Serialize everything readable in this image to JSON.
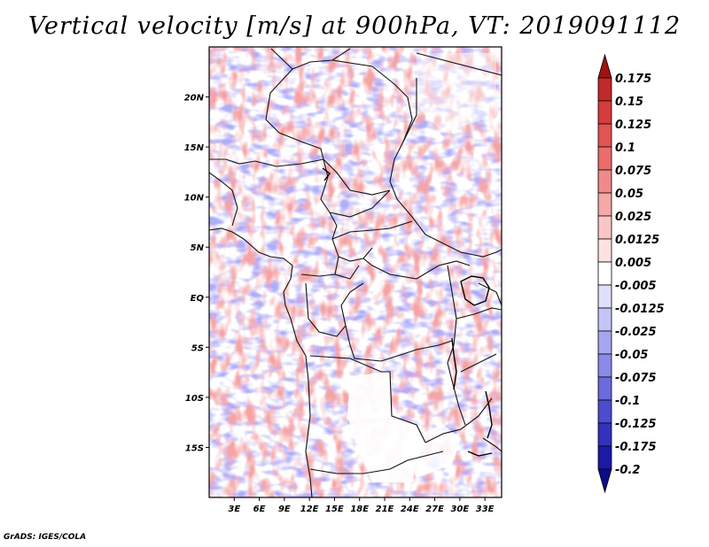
{
  "title": "Vertical velocity [m/s] at 900hPa, VT: 2019091112",
  "credit": "GrADS: IGES/COLA",
  "map": {
    "lat_labels": [
      "20N",
      "15N",
      "10N",
      "5N",
      "EQ",
      "5S",
      "10S",
      "15S"
    ],
    "lat_values": [
      20,
      15,
      10,
      5,
      0,
      -5,
      -10,
      -15
    ],
    "lon_labels": [
      "3E",
      "6E",
      "9E",
      "12E",
      "15E",
      "18E",
      "21E",
      "24E",
      "27E",
      "30E",
      "33E"
    ],
    "lon_values": [
      3,
      6,
      9,
      12,
      15,
      18,
      21,
      24,
      27,
      30,
      33
    ],
    "lat_range": [
      -20,
      25
    ],
    "lon_range": [
      0,
      35
    ]
  },
  "colorbar": {
    "labels": [
      "0.175",
      "0.15",
      "0.125",
      "0.1",
      "0.075",
      "0.05",
      "0.025",
      "0.0125",
      "0.005",
      "-0.005",
      "-0.0125",
      "-0.025",
      "-0.05",
      "-0.075",
      "-0.1",
      "-0.125",
      "-0.175",
      "-0.2"
    ],
    "colors": [
      "#a11212",
      "#c12a2a",
      "#d63c3c",
      "#e25353",
      "#eb6c6c",
      "#f08a8a",
      "#f5a8a8",
      "#f9c6c6",
      "#fde2e2",
      "#ffffff",
      "#e0e0fb",
      "#c4c4f6",
      "#a6a6f0",
      "#8a8ae8",
      "#6b6bdd",
      "#4c4ccf",
      "#3232bd",
      "#1a1aa6",
      "#0c0c8a"
    ]
  }
}
